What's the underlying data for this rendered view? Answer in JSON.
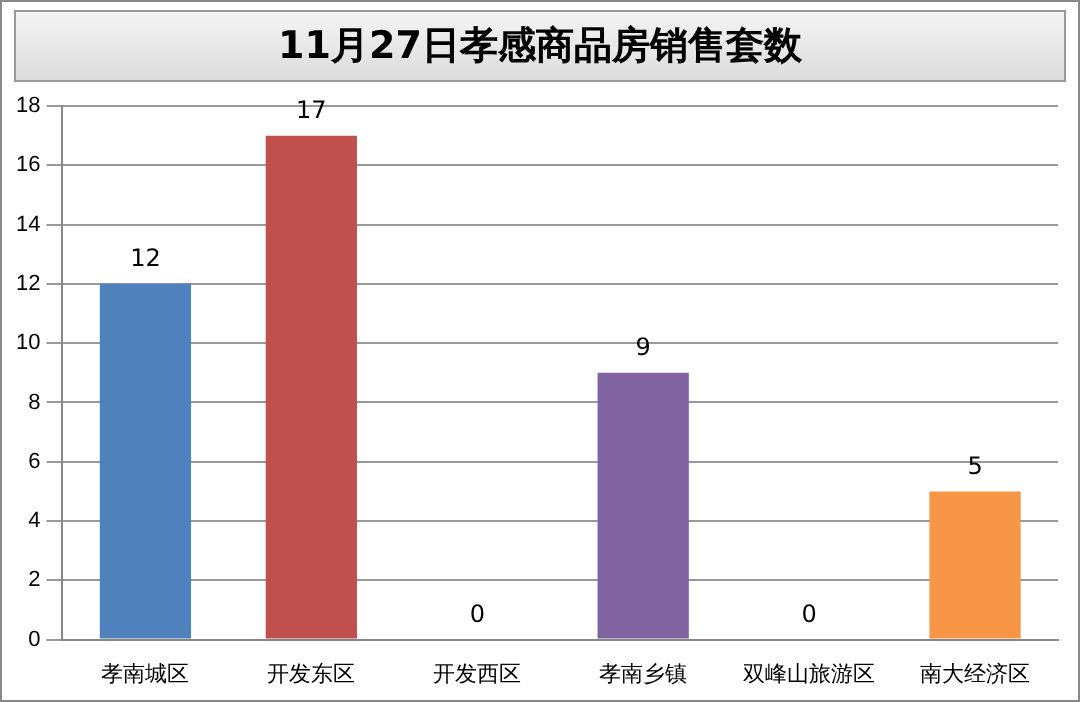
{
  "chart_data": {
    "type": "bar",
    "title": "11月27日孝感商品房销售套数",
    "categories": [
      "孝南城区",
      "开发东区",
      "开发西区",
      "孝南乡镇",
      "双峰山旅游区",
      "南大经济区"
    ],
    "values": [
      12,
      17,
      0,
      9,
      0,
      5
    ],
    "colors": [
      "#4f81bd",
      "#c0504d",
      "#9bbb59",
      "#8064a2",
      "#4bacc6",
      "#f79646"
    ],
    "ylim": [
      0,
      18
    ],
    "yticks": [
      0,
      2,
      4,
      6,
      8,
      10,
      12,
      14,
      16,
      18
    ],
    "grid": "y",
    "data_labels": true,
    "legend": false
  }
}
